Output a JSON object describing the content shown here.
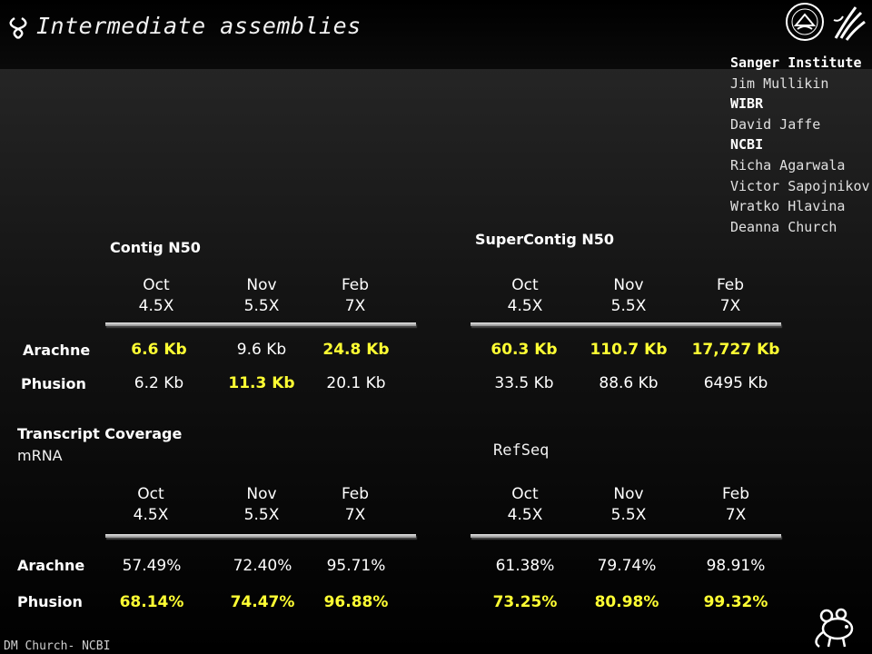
{
  "slide": {
    "title": "Intermediate assemblies",
    "footer": "DM Church- NCBI"
  },
  "credits": [
    {
      "text": "Sanger Institute",
      "kind": "org"
    },
    {
      "text": "Jim Mullikin",
      "kind": "person"
    },
    {
      "text": "WIBR",
      "kind": "org"
    },
    {
      "text": "David Jaffe",
      "kind": "person"
    },
    {
      "text": "NCBI",
      "kind": "org"
    },
    {
      "text": "Richa Agarwala",
      "kind": "person"
    },
    {
      "text": "Victor Sapojnikov",
      "kind": "person"
    },
    {
      "text": "Wratko Hlavina",
      "kind": "person"
    },
    {
      "text": "Deanna Church",
      "kind": "person"
    }
  ],
  "columns": [
    {
      "month": "Oct",
      "coverage": "4.5X"
    },
    {
      "month": "Nov",
      "coverage": "5.5X"
    },
    {
      "month": "Feb",
      "coverage": "7X"
    }
  ],
  "rows": {
    "arachne": "Arachne",
    "phusion": "Phusion"
  },
  "contig": {
    "title": "Contig N50",
    "arachne": [
      {
        "v": "6.6 Kb",
        "hl": true
      },
      {
        "v": "9.6 Kb",
        "hl": false
      },
      {
        "v": "24.8 Kb",
        "hl": true
      }
    ],
    "phusion": [
      {
        "v": "6.2 Kb",
        "hl": false
      },
      {
        "v": "11.3 Kb",
        "hl": true
      },
      {
        "v": "20.1 Kb",
        "hl": false
      }
    ]
  },
  "supercontig": {
    "title": "SuperContig N50",
    "arachne": [
      {
        "v": "60.3 Kb",
        "hl": true
      },
      {
        "v": "110.7 Kb",
        "hl": true
      },
      {
        "v": "17,727 Kb",
        "hl": true
      }
    ],
    "phusion": [
      {
        "v": "33.5 Kb",
        "hl": false
      },
      {
        "v": "88.6 Kb",
        "hl": false
      },
      {
        "v": "6495 Kb",
        "hl": false
      }
    ]
  },
  "transcript": {
    "title": "Transcript Coverage",
    "subtitle": "mRNA",
    "arachne": [
      {
        "v": "57.49%",
        "hl": false
      },
      {
        "v": "72.40%",
        "hl": false
      },
      {
        "v": "95.71%",
        "hl": false
      }
    ],
    "phusion": [
      {
        "v": "68.14%",
        "hl": true
      },
      {
        "v": "74.47%",
        "hl": true
      },
      {
        "v": "96.88%",
        "hl": true
      }
    ]
  },
  "refseq": {
    "title": "RefSeq",
    "arachne": [
      {
        "v": "61.38%",
        "hl": false
      },
      {
        "v": "79.74%",
        "hl": false
      },
      {
        "v": "98.91%",
        "hl": false
      }
    ],
    "phusion": [
      {
        "v": "73.25%",
        "hl": true
      },
      {
        "v": "80.98%",
        "hl": true
      },
      {
        "v": "99.32%",
        "hl": true
      }
    ]
  },
  "colors": {
    "highlight": "#ffff33",
    "normal": "#ffffff",
    "background": "#000000"
  },
  "icons": [
    "dna-logo-icon",
    "nih-seal-icon",
    "hhs-eagle-icon",
    "mouse-icon"
  ]
}
